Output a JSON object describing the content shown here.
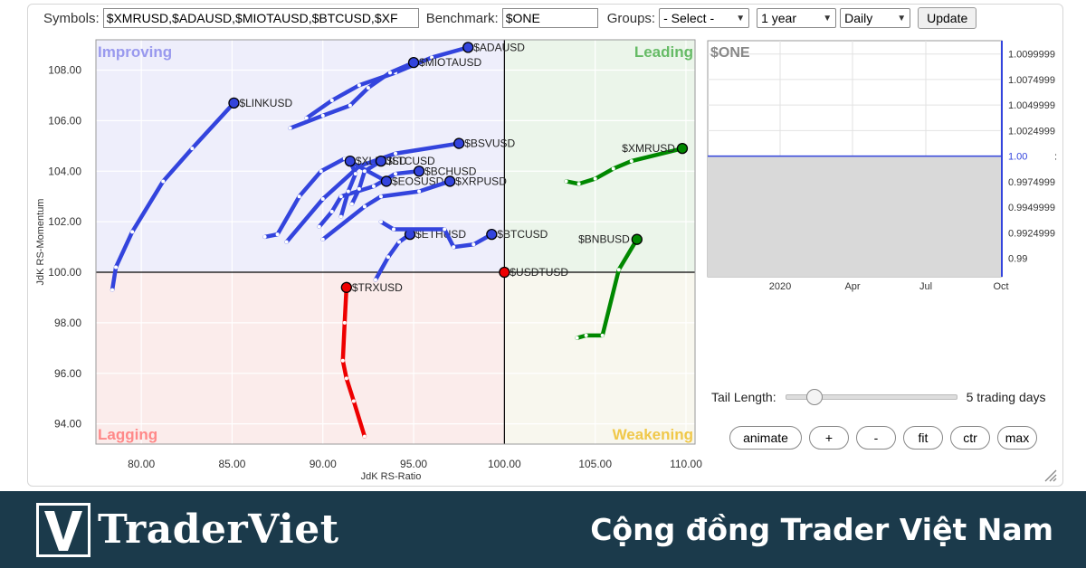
{
  "toolbar": {
    "symbols_label": "Symbols:",
    "symbols_value": "$XMRUSD,$ADAUSD,$MIOTAUSD,$BTCUSD,$XF",
    "benchmark_label": "Benchmark:",
    "benchmark_value": "$ONE",
    "groups_label": "Groups:",
    "groups_selected": "- Select -",
    "period_selected": "1 year",
    "frequency_selected": "Daily",
    "update_label": "Update"
  },
  "chart_data": [
    {
      "type": "scatter",
      "title": "",
      "xlabel": "JdK RS-Ratio",
      "ylabel": "JdK RS-Momentum",
      "xlim": [
        77.5,
        110.5
      ],
      "ylim": [
        93.2,
        109.2
      ],
      "x_ticks": [
        "80.00",
        "85.00",
        "90.00",
        "95.00",
        "100.00",
        "105.00",
        "110.00"
      ],
      "y_ticks": [
        "94.00",
        "96.00",
        "98.00",
        "100.00",
        "102.00",
        "104.00",
        "106.00",
        "108.00"
      ],
      "quadrants": [
        {
          "name": "Improving",
          "color": "#9999ee",
          "bg": "#eeeefb"
        },
        {
          "name": "Leading",
          "color": "#66bb66",
          "bg": "#ebf5ea"
        },
        {
          "name": "Lagging",
          "color": "#ff8888",
          "bg": "#fbeceb"
        },
        {
          "name": "Weakening",
          "color": "#f0c84a",
          "bg": "#f8f7ee"
        }
      ],
      "series": [
        {
          "name": "$ADAUSD",
          "color": "#3344dd",
          "points": [
            [
              89.1,
              106.1
            ],
            [
              90.5,
              106.8
            ],
            [
              92.0,
              107.4
            ],
            [
              94.0,
              107.9
            ],
            [
              96.0,
              108.5
            ],
            [
              98.0,
              108.9
            ]
          ]
        },
        {
          "name": "$MIOTAUSD",
          "color": "#3344dd",
          "points": [
            [
              88.2,
              105.7
            ],
            [
              90.0,
              106.2
            ],
            [
              91.5,
              106.6
            ],
            [
              92.5,
              107.3
            ],
            [
              93.7,
              107.9
            ],
            [
              95.0,
              108.3
            ]
          ]
        },
        {
          "name": "$LINKUSD",
          "color": "#3344dd",
          "points": [
            [
              78.4,
              99.3
            ],
            [
              78.6,
              100.2
            ],
            [
              79.5,
              101.6
            ],
            [
              81.2,
              103.6
            ],
            [
              82.8,
              104.9
            ],
            [
              85.1,
              106.7
            ]
          ]
        },
        {
          "name": "$BSVUSD",
          "color": "#3344dd",
          "points": [
            [
              88.0,
              101.2
            ],
            [
              90.0,
              102.9
            ],
            [
              92.0,
              104.2
            ],
            [
              94.0,
              104.7
            ],
            [
              97.5,
              105.1
            ]
          ]
        },
        {
          "name": "$XMRUSD",
          "color": "#008800",
          "points": [
            [
              103.4,
              103.6
            ],
            [
              104.1,
              103.5
            ],
            [
              105.0,
              103.7
            ],
            [
              106.0,
              104.1
            ],
            [
              107.0,
              104.4
            ],
            [
              109.8,
              104.9
            ]
          ]
        },
        {
          "name": "$BCHUSD",
          "color": "#3344dd",
          "points": [
            [
              89.8,
              101.8
            ],
            [
              90.5,
              102.4
            ],
            [
              91.0,
              103.0
            ],
            [
              92.8,
              103.4
            ],
            [
              94.0,
              103.9
            ],
            [
              95.3,
              104.0
            ]
          ]
        },
        {
          "name": "$EOSUSD",
          "color": "#3344dd",
          "points": [
            [
              86.8,
              101.4
            ],
            [
              87.5,
              101.5
            ],
            [
              88.7,
              103.0
            ],
            [
              89.9,
              104.0
            ],
            [
              91.2,
              104.5
            ],
            [
              93.5,
              103.6
            ]
          ]
        },
        {
          "name": "$XRPUSD",
          "color": "#3344dd",
          "points": [
            [
              90.0,
              101.3
            ],
            [
              92.3,
              102.6
            ],
            [
              93.2,
              103.0
            ],
            [
              95.3,
              103.2
            ],
            [
              97.0,
              103.6
            ]
          ]
        },
        {
          "name": "$XLMUSD",
          "color": "#3344dd",
          "points": [
            [
              91.0,
              102.2
            ],
            [
              91.4,
              103.2
            ],
            [
              91.8,
              103.9
            ],
            [
              91.5,
              104.4
            ]
          ]
        },
        {
          "name": "$LTCUSD",
          "color": "#3344dd",
          "points": [
            [
              91.6,
              102.7
            ],
            [
              92.0,
              103.3
            ],
            [
              92.3,
              104.0
            ],
            [
              93.2,
              104.4
            ]
          ]
        },
        {
          "name": "$ETHUSD",
          "color": "#3344dd",
          "points": [
            [
              92.9,
              99.7
            ],
            [
              93.6,
              100.6
            ],
            [
              94.2,
              101.2
            ],
            [
              94.8,
              101.5
            ]
          ]
        },
        {
          "name": "$BTCUSD",
          "color": "#3344dd",
          "points": [
            [
              93.2,
              102.0
            ],
            [
              93.9,
              101.7
            ],
            [
              96.7,
              101.7
            ],
            [
              97.2,
              101.0
            ],
            [
              98.3,
              101.1
            ],
            [
              99.3,
              101.5
            ]
          ]
        },
        {
          "name": "$BNBUSD",
          "color": "#008800",
          "points": [
            [
              104.0,
              97.4
            ],
            [
              104.5,
              97.5
            ],
            [
              105.4,
              97.5
            ],
            [
              106.3,
              100.1
            ],
            [
              107.3,
              101.3
            ]
          ]
        },
        {
          "name": "$TRXUSD",
          "color": "#ee0000",
          "points": [
            [
              92.3,
              93.5
            ],
            [
              91.7,
              94.9
            ],
            [
              91.3,
              95.8
            ],
            [
              91.1,
              96.5
            ],
            [
              91.2,
              98.0
            ],
            [
              91.3,
              99.4
            ]
          ]
        },
        {
          "name": "$USDTUSD",
          "color": "#ee0000",
          "points": [
            [
              100.0,
              100.0
            ]
          ]
        }
      ]
    },
    {
      "type": "line",
      "title": "$ONE",
      "x_ticks": [
        "2020",
        "Apr",
        "Jul",
        "Oct"
      ],
      "y_ticks": [
        "1.0099999",
        "1.0074999",
        "1.0049999",
        "1.0024999",
        "1.00",
        "0.9974999",
        "0.9949999",
        "0.9924999",
        "0.99"
      ],
      "series": [
        {
          "name": "$ONE",
          "values": [
            1.0,
            1.0
          ]
        }
      ],
      "ylim": [
        0.9882,
        1.0113
      ]
    }
  ],
  "controls": {
    "tail_label": "Tail Length:",
    "tail_value": "5 trading days",
    "tail_fraction": 0.1,
    "buttons": [
      "animate",
      "+",
      "-",
      "fit",
      "ctr",
      "max"
    ]
  },
  "footer": {
    "brand": "TraderViet",
    "slogan": "Cộng đồng Trader Việt Nam",
    "bg_color": "#1b3a4b"
  }
}
